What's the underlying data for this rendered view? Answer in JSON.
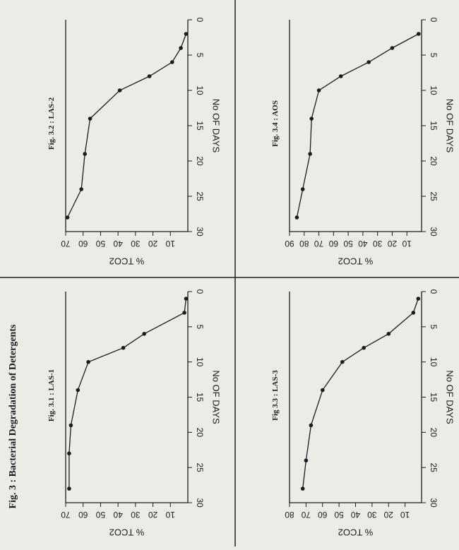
{
  "figure_title": "Fig. 3 : Bacterial Degradation of Detergents",
  "chart_data": [
    {
      "type": "line",
      "title": "Fig. 3.1 : LAS-1",
      "xlabel": "No OF DAYS",
      "ylabel": "% TCO2",
      "xlim": [
        0,
        30
      ],
      "ylim": [
        0,
        70
      ],
      "xticks": [
        0,
        5,
        10,
        15,
        20,
        25,
        30
      ],
      "yticks": [
        10,
        20,
        30,
        40,
        50,
        60,
        70
      ],
      "grid": false,
      "x": [
        1,
        3,
        6,
        8,
        10,
        14,
        19,
        23,
        28
      ],
      "y": [
        1,
        2,
        25,
        37,
        57,
        63,
        67,
        68,
        68
      ]
    },
    {
      "type": "line",
      "title": "Fig. 3.2 : LAS-2",
      "xlabel": "No OF DAYS",
      "ylabel": "% TCO2",
      "xlim": [
        0,
        30
      ],
      "ylim": [
        0,
        70
      ],
      "xticks": [
        0,
        5,
        10,
        15,
        20,
        25,
        30
      ],
      "yticks": [
        10,
        20,
        30,
        40,
        50,
        60,
        70
      ],
      "grid": false,
      "x": [
        2,
        4,
        6,
        8,
        10,
        14,
        19,
        24,
        28
      ],
      "y": [
        1,
        4,
        9,
        22,
        39,
        56,
        59,
        61,
        69
      ]
    },
    {
      "type": "line",
      "title": "Fig 3.3 : LAS-3",
      "xlabel": "No OF DAYS",
      "ylabel": "% TCO2",
      "xlim": [
        0,
        30
      ],
      "ylim": [
        0,
        80
      ],
      "xticks": [
        0,
        5,
        10,
        15,
        20,
        25,
        30
      ],
      "yticks": [
        10,
        20,
        30,
        40,
        50,
        60,
        70,
        80
      ],
      "grid": false,
      "x": [
        1,
        3,
        6,
        8,
        10,
        14,
        19,
        24,
        28
      ],
      "y": [
        2,
        5,
        20,
        35,
        48,
        60,
        67,
        70,
        72
      ]
    },
    {
      "type": "line",
      "title": "Fig. 3.4 : AOS",
      "xlabel": "No OF DAYS",
      "ylabel": "% TCO2",
      "xlim": [
        0,
        30
      ],
      "ylim": [
        0,
        90
      ],
      "xticks": [
        0,
        5,
        10,
        15,
        20,
        25,
        30
      ],
      "yticks": [
        10,
        20,
        30,
        40,
        50,
        60,
        70,
        80,
        90
      ],
      "grid": false,
      "x": [
        2,
        4,
        6,
        8,
        10,
        14,
        19,
        24,
        28
      ],
      "y": [
        2,
        20,
        36,
        55,
        70,
        75,
        76,
        81,
        85
      ]
    }
  ]
}
